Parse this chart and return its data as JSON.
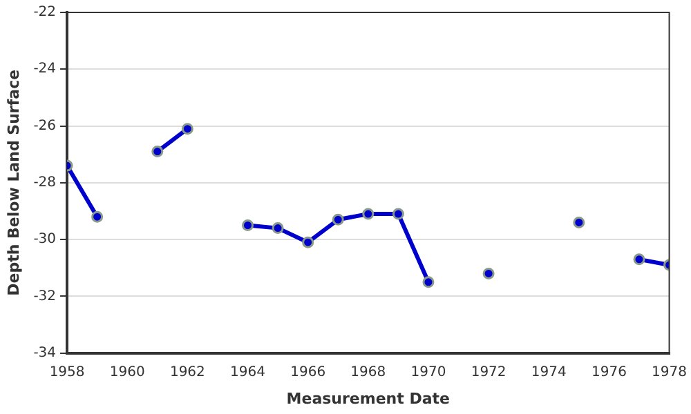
{
  "chart_data": {
    "type": "line",
    "xlabel": "Measurement Date",
    "ylabel": "Depth Below Land Surface",
    "x": [
      1958,
      1959,
      1960,
      1961,
      1962,
      1963,
      1964,
      1965,
      1966,
      1967,
      1968,
      1969,
      1970,
      1971,
      1972,
      1973,
      1974,
      1975,
      1976,
      1977,
      1978
    ],
    "series": [
      {
        "color": "#0000cc",
        "values": [
          -27.4,
          -29.2,
          null,
          -26.9,
          -26.1,
          null,
          -29.5,
          -29.6,
          -30.1,
          -29.3,
          -29.1,
          -29.1,
          -31.5,
          null,
          -31.2,
          null,
          null,
          -29.4,
          null,
          -30.7,
          -30.9
        ]
      }
    ],
    "xlim": [
      1958,
      1978
    ],
    "xticks": [
      1958,
      1960,
      1962,
      1964,
      1966,
      1968,
      1970,
      1972,
      1974,
      1976,
      1978
    ],
    "ylim": [
      -34,
      -22
    ],
    "yticks": [
      -34,
      -32,
      -30,
      -28,
      -26,
      -24,
      -22
    ],
    "grid": "y",
    "marker": "circle",
    "line_style": "solid",
    "legend": false
  }
}
